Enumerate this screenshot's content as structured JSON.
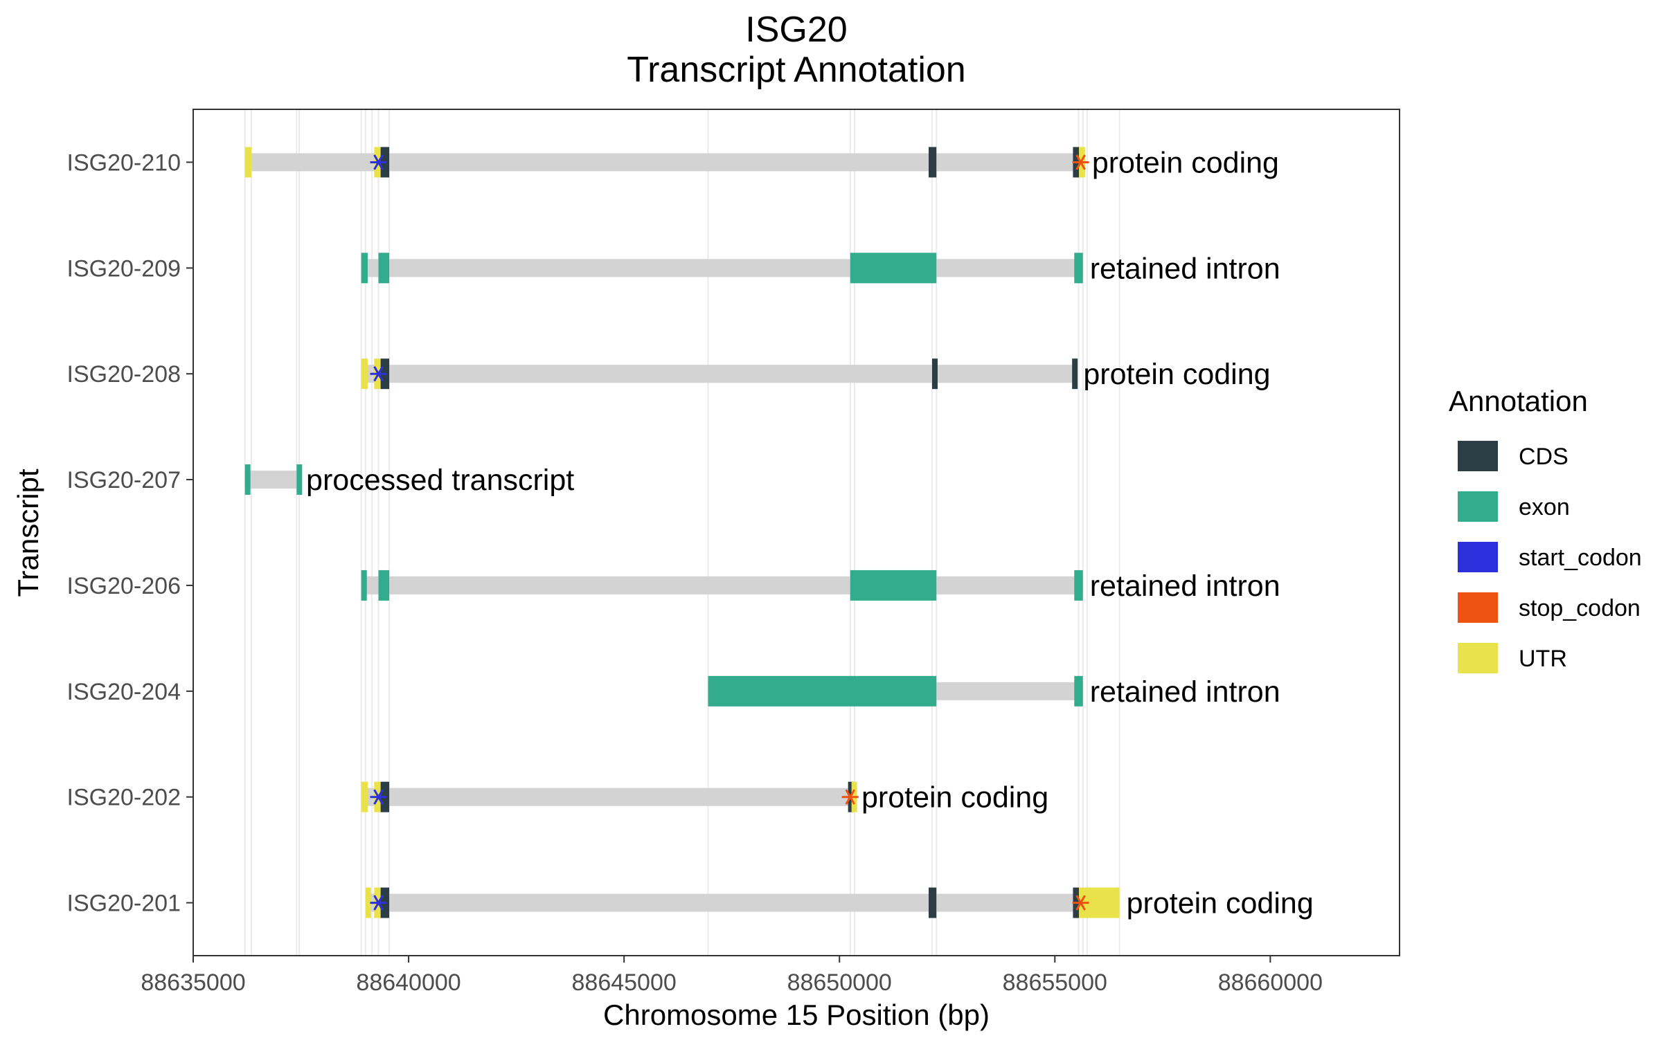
{
  "chart_data": {
    "type": "gene-track",
    "title": "ISG20",
    "subtitle": "Transcript Annotation",
    "xlabel": "Chromosome 15 Position (bp)",
    "ylabel": "Transcript",
    "xlim": [
      88635000,
      88663000
    ],
    "x_ticks": [
      88635000,
      88640000,
      88645000,
      88650000,
      88655000,
      88660000
    ],
    "x_tick_labels": [
      "88635000",
      "88640000",
      "88645000",
      "88650000",
      "88655000",
      "88660000"
    ],
    "legend": {
      "title": "Annotation",
      "position": "right",
      "entries": [
        {
          "label": "CDS",
          "color": "#2c3e45"
        },
        {
          "label": "exon",
          "color": "#33ab8d"
        },
        {
          "label": "start_codon",
          "color": "#2b30dc"
        },
        {
          "label": "stop_codon",
          "color": "#ee5311"
        },
        {
          "label": "UTR",
          "color": "#e9e24a"
        }
      ]
    },
    "intron_color": "#d3d3d3",
    "vertical_guides": [
      88636200,
      88636350,
      88637400,
      88637460,
      88638900,
      88639000,
      88639150,
      88639300,
      88639550,
      88650250,
      88650350,
      88652150,
      88652250,
      88655550,
      88655650,
      88655750,
      88656500,
      88646950
    ],
    "transcripts": [
      {
        "name": "ISG20-210",
        "biotype": "protein coding",
        "start": 88636200,
        "end": 88655700,
        "features": [
          {
            "type": "UTR",
            "start": 88636200,
            "end": 88636350
          },
          {
            "type": "UTR",
            "start": 88639200,
            "end": 88639350
          },
          {
            "type": "CDS",
            "start": 88639350,
            "end": 88639550
          },
          {
            "type": "CDS",
            "start": 88652070,
            "end": 88652250
          },
          {
            "type": "CDS",
            "start": 88655420,
            "end": 88655560
          },
          {
            "type": "UTR",
            "start": 88655560,
            "end": 88655700
          }
        ],
        "start_codon": 88639300,
        "stop_codon": 88655600
      },
      {
        "name": "ISG20-209",
        "biotype": "retained intron",
        "start": 88638900,
        "end": 88655650,
        "features": [
          {
            "type": "exon",
            "start": 88638900,
            "end": 88639050
          },
          {
            "type": "exon",
            "start": 88639300,
            "end": 88639550
          },
          {
            "type": "exon",
            "start": 88650250,
            "end": 88652250
          },
          {
            "type": "exon",
            "start": 88655450,
            "end": 88655650
          }
        ]
      },
      {
        "name": "ISG20-208",
        "biotype": "protein coding",
        "start": 88638900,
        "end": 88655500,
        "features": [
          {
            "type": "UTR",
            "start": 88638900,
            "end": 88639050
          },
          {
            "type": "UTR",
            "start": 88639200,
            "end": 88639350
          },
          {
            "type": "CDS",
            "start": 88639350,
            "end": 88639550
          },
          {
            "type": "CDS",
            "start": 88652150,
            "end": 88652250
          },
          {
            "type": "CDS",
            "start": 88655400,
            "end": 88655500
          }
        ],
        "start_codon": 88639300
      },
      {
        "name": "ISG20-207",
        "biotype": "processed transcript",
        "start": 88636200,
        "end": 88637460,
        "features": [
          {
            "type": "exon",
            "start": 88636200,
            "end": 88636320
          },
          {
            "type": "exon",
            "start": 88637400,
            "end": 88637460
          }
        ]
      },
      {
        "name": "ISG20-206",
        "biotype": "retained intron",
        "start": 88638900,
        "end": 88655650,
        "features": [
          {
            "type": "exon",
            "start": 88638900,
            "end": 88639030
          },
          {
            "type": "exon",
            "start": 88639300,
            "end": 88639550
          },
          {
            "type": "exon",
            "start": 88650250,
            "end": 88652250
          },
          {
            "type": "exon",
            "start": 88655450,
            "end": 88655650
          }
        ]
      },
      {
        "name": "ISG20-204",
        "biotype": "retained intron",
        "start": 88646950,
        "end": 88655650,
        "features": [
          {
            "type": "exon",
            "start": 88646950,
            "end": 88652250
          },
          {
            "type": "exon",
            "start": 88655450,
            "end": 88655650
          }
        ]
      },
      {
        "name": "ISG20-202",
        "biotype": "protein coding",
        "start": 88638900,
        "end": 88650350,
        "features": [
          {
            "type": "UTR",
            "start": 88638900,
            "end": 88639050
          },
          {
            "type": "UTR",
            "start": 88639200,
            "end": 88639350
          },
          {
            "type": "CDS",
            "start": 88639350,
            "end": 88639550
          },
          {
            "type": "CDS",
            "start": 88650200,
            "end": 88650280
          },
          {
            "type": "UTR",
            "start": 88650280,
            "end": 88650350
          }
        ],
        "start_codon": 88639300,
        "stop_codon": 88650250
      },
      {
        "name": "ISG20-201",
        "biotype": "protein coding",
        "start": 88639000,
        "end": 88656500,
        "features": [
          {
            "type": "UTR",
            "start": 88639000,
            "end": 88639050
          },
          {
            "type": "UTR",
            "start": 88639200,
            "end": 88639350
          },
          {
            "type": "CDS",
            "start": 88639350,
            "end": 88639550
          },
          {
            "type": "CDS",
            "start": 88652070,
            "end": 88652250
          },
          {
            "type": "CDS",
            "start": 88655420,
            "end": 88655560
          },
          {
            "type": "UTR",
            "start": 88655560,
            "end": 88656500
          }
        ],
        "start_codon": 88639300,
        "stop_codon": 88655600
      }
    ]
  }
}
